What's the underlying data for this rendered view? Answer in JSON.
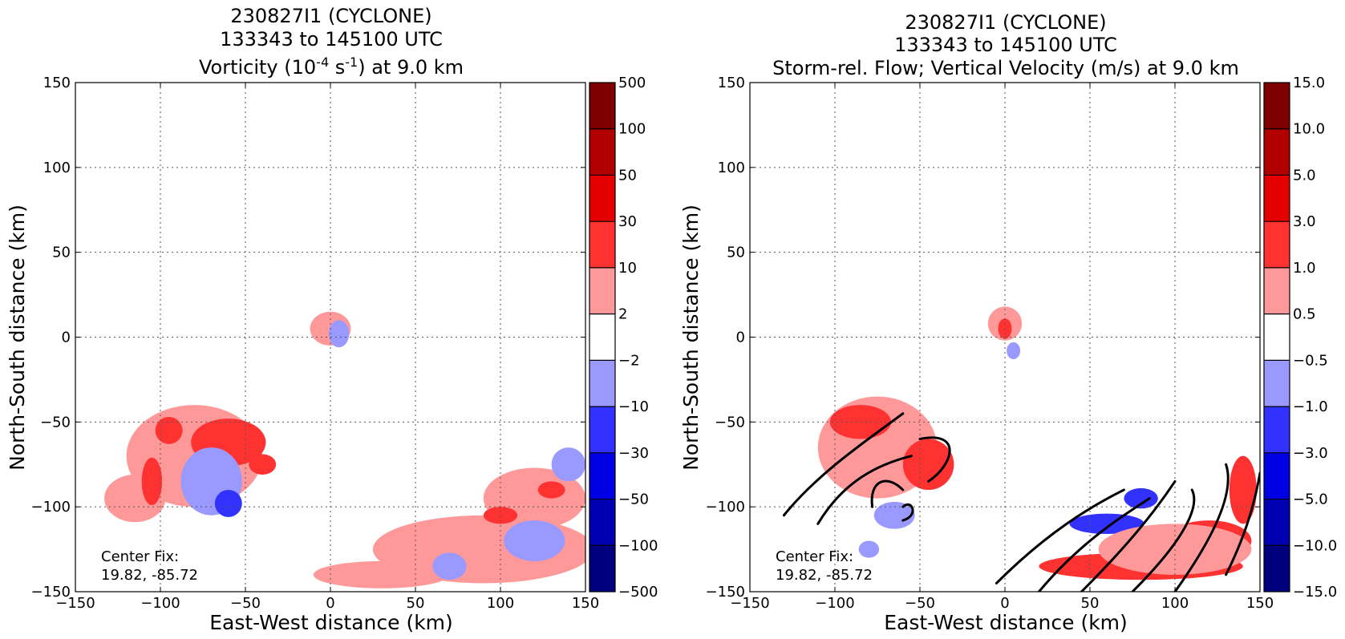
{
  "colors": {
    "level_colors": [
      "#00007f",
      "#0000b2",
      "#0000e5",
      "#3232ff",
      "#9999ff",
      "#ffffff",
      "#ff9999",
      "#ff3232",
      "#e50000",
      "#b20000",
      "#7f0000"
    ],
    "streamline": "#000000",
    "grid": "#555555"
  },
  "chart_data": [
    {
      "type": "heatmap",
      "title_lines": [
        "230827I1 (CYCLONE)",
        "133343 to 145100 UTC"
      ],
      "title_var_pre": "Vorticity (10",
      "title_var_sup1": "-4",
      "title_var_mid": " s",
      "title_var_sup2": "-1",
      "title_var_post": ") at 9.0 km",
      "xlabel": "East-West distance (km)",
      "ylabel": "North-South distance (km)",
      "xlim": [
        -150,
        150
      ],
      "ylim": [
        -150,
        150
      ],
      "xticks": [
        -150,
        -100,
        -50,
        0,
        50,
        100,
        150
      ],
      "yticks": [
        -150,
        -100,
        -50,
        0,
        50,
        100,
        150
      ],
      "xtick_labels": [
        "−150",
        "−100",
        "−50",
        "0",
        "50",
        "100",
        "150"
      ],
      "ytick_labels": [
        "−150",
        "−100",
        "−50",
        "0",
        "50",
        "100",
        "150"
      ],
      "grid": true,
      "colorbar_labels": [
        "−500",
        "−100",
        "−50",
        "−30",
        "−10",
        "−2",
        "2",
        "10",
        "30",
        "50",
        "100",
        "500"
      ],
      "annotation_lines": [
        "Center Fix:",
        "19.82, -85.72"
      ],
      "blobs": [
        {
          "x": -80,
          "y": -70,
          "rx": 40,
          "ry": 30,
          "level": 6
        },
        {
          "x": -115,
          "y": -95,
          "rx": 18,
          "ry": 14,
          "level": 6
        },
        {
          "x": -60,
          "y": -62,
          "rx": 22,
          "ry": 14,
          "level": 7
        },
        {
          "x": -95,
          "y": -55,
          "rx": 8,
          "ry": 8,
          "level": 7
        },
        {
          "x": -105,
          "y": -85,
          "rx": 6,
          "ry": 14,
          "level": 7
        },
        {
          "x": -40,
          "y": -75,
          "rx": 8,
          "ry": 6,
          "level": 7
        },
        {
          "x": -70,
          "y": -85,
          "rx": 18,
          "ry": 20,
          "level": 4
        },
        {
          "x": -60,
          "y": -98,
          "rx": 8,
          "ry": 8,
          "level": 3
        },
        {
          "x": 0,
          "y": 5,
          "rx": 12,
          "ry": 10,
          "level": 6
        },
        {
          "x": 5,
          "y": 2,
          "rx": 6,
          "ry": 8,
          "level": 4
        },
        {
          "x": 90,
          "y": -125,
          "rx": 65,
          "ry": 20,
          "level": 6
        },
        {
          "x": 120,
          "y": -95,
          "rx": 30,
          "ry": 18,
          "level": 6
        },
        {
          "x": 30,
          "y": -140,
          "rx": 40,
          "ry": 8,
          "level": 6
        },
        {
          "x": 100,
          "y": -105,
          "rx": 10,
          "ry": 5,
          "level": 7
        },
        {
          "x": 130,
          "y": -90,
          "rx": 8,
          "ry": 5,
          "level": 7
        },
        {
          "x": 120,
          "y": -120,
          "rx": 18,
          "ry": 12,
          "level": 4
        },
        {
          "x": 140,
          "y": -75,
          "rx": 10,
          "ry": 10,
          "level": 4
        },
        {
          "x": 70,
          "y": -135,
          "rx": 10,
          "ry": 8,
          "level": 4
        }
      ],
      "streamlines": []
    },
    {
      "type": "heatmap",
      "title_lines": [
        "230827I1 (CYCLONE)",
        "133343 to 145100 UTC",
        "Storm-rel. Flow; Vertical Velocity (m/s) at 9.0 km"
      ],
      "xlabel": "East-West distance (km)",
      "ylabel": "North-South distance (km)",
      "xlim": [
        -150,
        150
      ],
      "ylim": [
        -150,
        150
      ],
      "xticks": [
        -150,
        -100,
        -50,
        0,
        50,
        100,
        150
      ],
      "yticks": [
        -150,
        -100,
        -50,
        0,
        50,
        100,
        150
      ],
      "xtick_labels": [
        "−150",
        "−100",
        "−50",
        "0",
        "50",
        "100",
        "150"
      ],
      "ytick_labels": [
        "−150",
        "−100",
        "−50",
        "0",
        "50",
        "100",
        "150"
      ],
      "grid": true,
      "colorbar_labels": [
        "−15.0",
        "−10.0",
        "−5.0",
        "−3.0",
        "−1.0",
        "−0.5",
        "0.5",
        "1.0",
        "3.0",
        "5.0",
        "10.0",
        "15.0"
      ],
      "annotation_lines": [
        "Center Fix:",
        "19.82, -85.72"
      ],
      "blobs": [
        {
          "x": -75,
          "y": -65,
          "rx": 35,
          "ry": 30,
          "level": 6
        },
        {
          "x": -85,
          "y": -50,
          "rx": 18,
          "ry": 10,
          "level": 7
        },
        {
          "x": -45,
          "y": -75,
          "rx": 15,
          "ry": 15,
          "level": 7
        },
        {
          "x": -65,
          "y": -105,
          "rx": 12,
          "ry": 8,
          "level": 4
        },
        {
          "x": -80,
          "y": -125,
          "rx": 6,
          "ry": 5,
          "level": 4
        },
        {
          "x": 0,
          "y": 8,
          "rx": 10,
          "ry": 10,
          "level": 6
        },
        {
          "x": 0,
          "y": 5,
          "rx": 4,
          "ry": 6,
          "level": 7
        },
        {
          "x": 5,
          "y": -8,
          "rx": 4,
          "ry": 5,
          "level": 4
        },
        {
          "x": 60,
          "y": -110,
          "rx": 22,
          "ry": 6,
          "level": 3
        },
        {
          "x": 80,
          "y": -95,
          "rx": 10,
          "ry": 6,
          "level": 3
        },
        {
          "x": 80,
          "y": -135,
          "rx": 60,
          "ry": 8,
          "level": 7
        },
        {
          "x": 120,
          "y": -120,
          "rx": 25,
          "ry": 12,
          "level": 7
        },
        {
          "x": 140,
          "y": -90,
          "rx": 8,
          "ry": 20,
          "level": 7
        },
        {
          "x": 100,
          "y": -125,
          "rx": 45,
          "ry": 15,
          "level": 6
        }
      ],
      "streamlines": [
        [
          [
            -130,
            -105
          ],
          [
            -110,
            -80
          ],
          [
            -80,
            -60
          ],
          [
            -60,
            -45
          ]
        ],
        [
          [
            -110,
            -110
          ],
          [
            -95,
            -85
          ],
          [
            -75,
            -75
          ],
          [
            -55,
            -70
          ]
        ],
        [
          [
            -60,
            -90
          ],
          [
            -70,
            -80
          ],
          [
            -80,
            -85
          ],
          [
            -78,
            -100
          ]
        ],
        [
          [
            -60,
            -100
          ],
          [
            -55,
            -95
          ],
          [
            -50,
            -105
          ],
          [
            -60,
            -108
          ]
        ],
        [
          [
            -50,
            -60
          ],
          [
            -25,
            -55
          ],
          [
            -30,
            -75
          ],
          [
            -45,
            -85
          ]
        ],
        [
          [
            -5,
            -145
          ],
          [
            25,
            -115
          ],
          [
            50,
            -100
          ],
          [
            70,
            -90
          ]
        ],
        [
          [
            20,
            -150
          ],
          [
            45,
            -120
          ],
          [
            70,
            -105
          ],
          [
            85,
            -95
          ]
        ],
        [
          [
            45,
            -150
          ],
          [
            75,
            -120
          ],
          [
            90,
            -100
          ],
          [
            100,
            -85
          ]
        ],
        [
          [
            75,
            -150
          ],
          [
            105,
            -120
          ],
          [
            115,
            -100
          ],
          [
            110,
            -90
          ]
        ],
        [
          [
            100,
            -150
          ],
          [
            125,
            -115
          ],
          [
            135,
            -90
          ],
          [
            130,
            -75
          ]
        ],
        [
          [
            130,
            -140
          ],
          [
            145,
            -110
          ],
          [
            150,
            -80
          ]
        ]
      ]
    }
  ]
}
